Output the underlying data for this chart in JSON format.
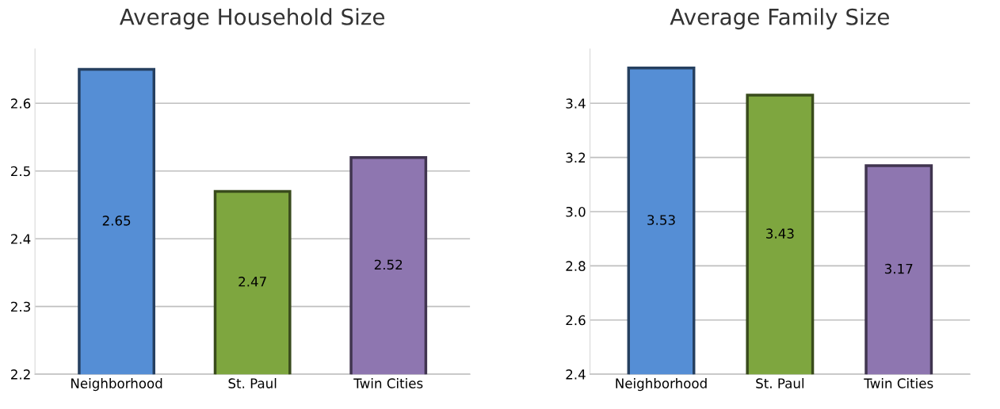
{
  "chart_data": [
    {
      "type": "bar",
      "title": "Average Household Size",
      "categories": [
        "Neighborhood",
        "St. Paul",
        "Twin Cities"
      ],
      "values": [
        2.65,
        2.47,
        2.52
      ],
      "colors": [
        "#558ed5",
        "#7ea63f",
        "#8e76b0"
      ],
      "ylim": [
        2.2,
        2.68
      ],
      "yticks": [
        2.2,
        2.3,
        2.4,
        2.5,
        2.6
      ],
      "grid": "y",
      "data_labels": true
    },
    {
      "type": "bar",
      "title": "Average Family Size",
      "categories": [
        "Neighborhood",
        "St. Paul",
        "Twin Cities"
      ],
      "values": [
        3.53,
        3.43,
        3.17
      ],
      "colors": [
        "#558ed5",
        "#7ea63f",
        "#8e76b0"
      ],
      "ylim": [
        2.4,
        3.6
      ],
      "yticks": [
        {
          "value": 2.4,
          "label": "2.4"
        },
        {
          "value": 2.6,
          "label": "2.6"
        },
        {
          "value": 2.8,
          "label": "2.8"
        },
        {
          "value": 3.0,
          "label": "3.0"
        },
        {
          "value": 3.2,
          "label": "3.2"
        },
        {
          "value": 3.4,
          "label": "3.4"
        }
      ],
      "grid": "y",
      "data_labels": true
    }
  ]
}
